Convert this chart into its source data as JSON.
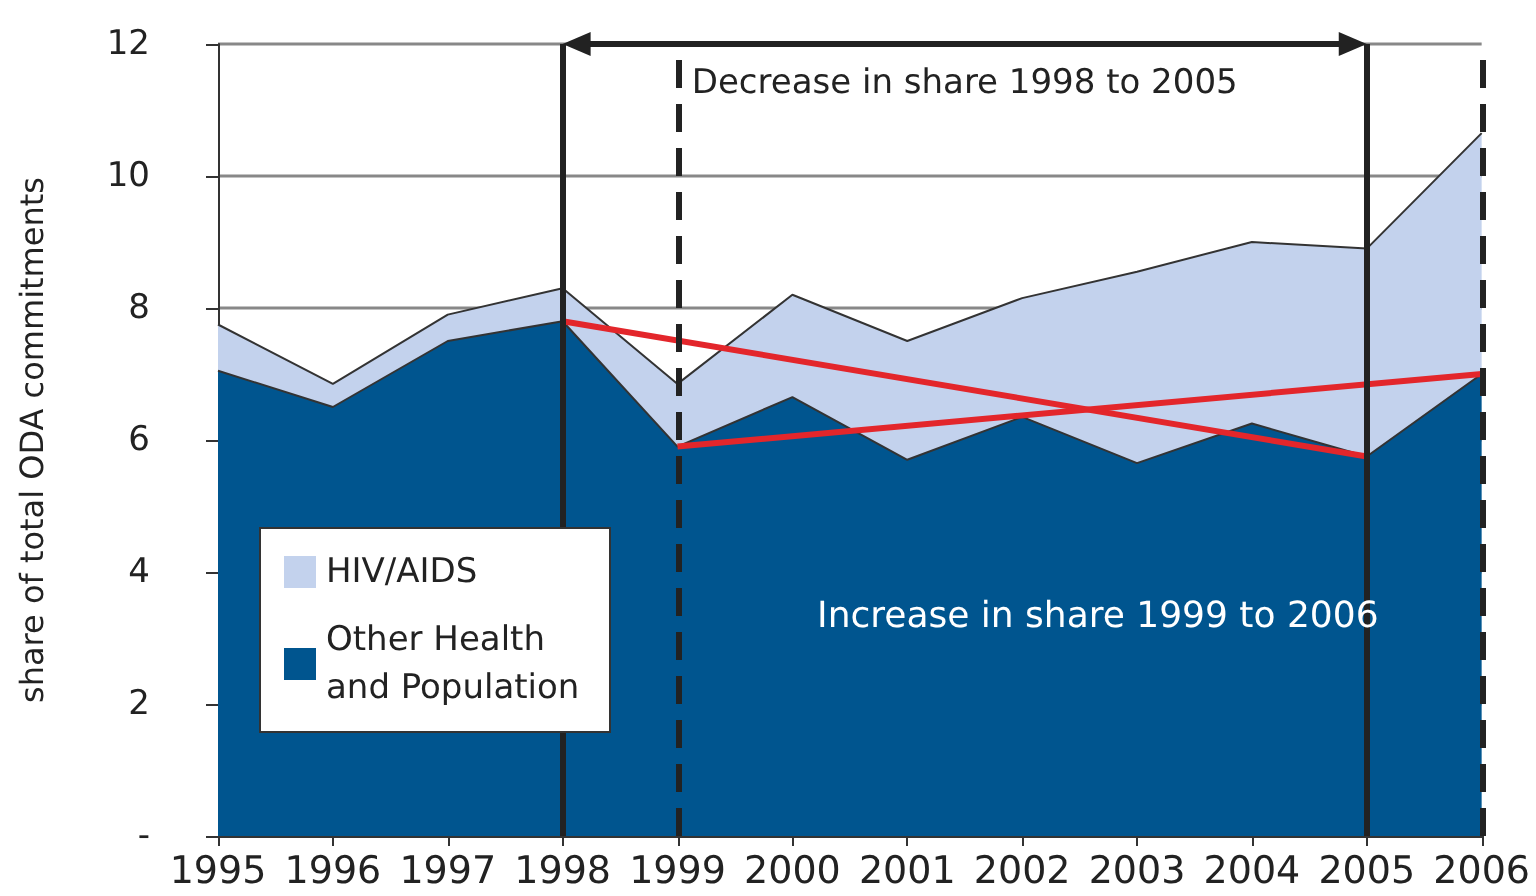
{
  "chart_data": {
    "type": "area",
    "stacked": true,
    "ylabel": "share of total ODA commitments",
    "categories": [
      "1995",
      "1996",
      "1997",
      "1998",
      "1999",
      "2000",
      "2001",
      "2002",
      "2003",
      "2004",
      "2005",
      "2006"
    ],
    "series": [
      {
        "name": "Other Health and Population",
        "color": "#00558f",
        "values": [
          7.05,
          6.5,
          7.5,
          7.8,
          5.9,
          6.65,
          5.7,
          6.35,
          5.65,
          6.25,
          5.75,
          7.0
        ]
      },
      {
        "name": "HIV/AIDS",
        "color": "#c3d2ed",
        "values": [
          0.7,
          0.35,
          0.4,
          0.5,
          0.95,
          1.55,
          1.8,
          1.8,
          2.9,
          2.75,
          3.15,
          3.65
        ]
      },
      {
        "type": "line",
        "color": "#e3262b",
        "values": [
          null,
          null,
          null,
          7.8,
          null,
          null,
          null,
          null,
          null,
          null,
          5.75,
          null
        ]
      },
      {
        "type": "line",
        "color": "#e3262b",
        "values": [
          null,
          null,
          null,
          null,
          5.9,
          null,
          null,
          null,
          null,
          null,
          null,
          7.0
        ]
      }
    ],
    "ylim": [
      0,
      12
    ],
    "yticks": [
      {
        "value": 0,
        "label": "-"
      },
      2,
      4,
      6,
      8,
      10,
      12
    ],
    "grid": "y",
    "legend": "bottom left",
    "marker": "none",
    "ref_lines": [
      {
        "axis": "x",
        "value": "1998",
        "color": "#222222",
        "line_style": "solid"
      },
      {
        "axis": "x",
        "value": "1999",
        "color": "#222222",
        "line_style": "dashed"
      },
      {
        "axis": "x",
        "value": "2005",
        "color": "#222222",
        "line_style": "solid"
      },
      {
        "axis": "x",
        "value": "2006",
        "color": "#222222",
        "line_style": "dashed"
      }
    ],
    "annotations": [
      "Decrease in share 1998 to 2005",
      "Increase in share 1999 to 2006"
    ]
  }
}
